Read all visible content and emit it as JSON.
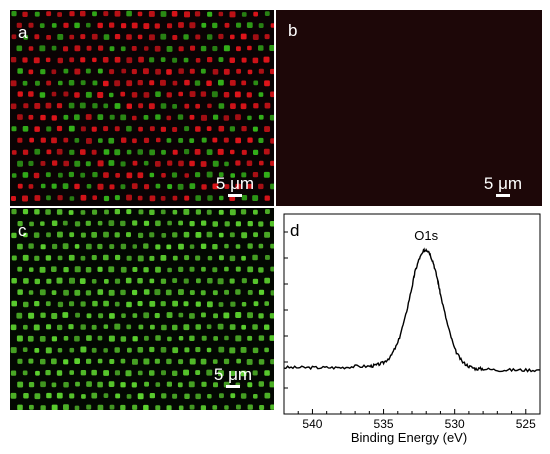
{
  "panels": {
    "a": {
      "label": "a",
      "scale_bar": "5 μm",
      "dot_color": "#e0141a",
      "dot_color_2": "#34b31a"
    },
    "b": {
      "label": "b",
      "scale_bar": "5 μm"
    },
    "c": {
      "label": "c",
      "scale_bar": "5 μm",
      "dot_color": "#5bd12e"
    },
    "d": {
      "label": "d"
    }
  },
  "chart_data": {
    "type": "line",
    "title": "",
    "xlabel": "Binding Energy (eV)",
    "ylabel": "",
    "xlim": [
      542,
      524
    ],
    "x_reversed": true,
    "xticks": [
      540,
      535,
      530,
      525
    ],
    "annotations": [
      {
        "text": "O1s",
        "x": 532.0
      }
    ],
    "series": [
      {
        "x": [
          542,
          541,
          540,
          539,
          538,
          537,
          536,
          535.5,
          535,
          534.5,
          534,
          533.5,
          533,
          532.8,
          532.5,
          532.2,
          532,
          531.8,
          531.5,
          531.2,
          531,
          530.5,
          530,
          529.5,
          529,
          528.5,
          528,
          527,
          526,
          525,
          524
        ],
        "y": [
          0.02,
          0.02,
          0.02,
          0.02,
          0.02,
          0.03,
          0.03,
          0.04,
          0.06,
          0.11,
          0.22,
          0.42,
          0.68,
          0.8,
          0.91,
          0.97,
          0.99,
          0.97,
          0.88,
          0.74,
          0.62,
          0.37,
          0.17,
          0.07,
          0.03,
          0.01,
          0.01,
          0.0,
          0.0,
          0.0,
          0.0
        ]
      }
    ]
  }
}
